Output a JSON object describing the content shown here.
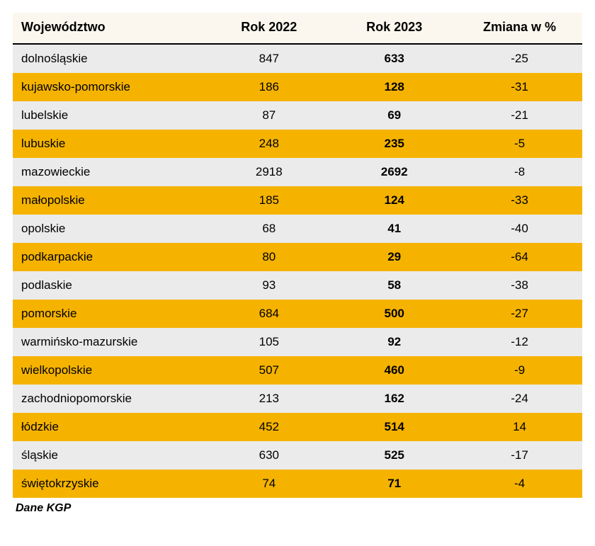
{
  "table": {
    "type": "table",
    "columns": [
      {
        "key": "wojewodztwo",
        "label": "Województwo",
        "align": "left",
        "bold": false,
        "width_pct": 34
      },
      {
        "key": "rok2022",
        "label": "Rok 2022",
        "align": "center",
        "bold": false,
        "width_pct": 22
      },
      {
        "key": "rok2023",
        "label": "Rok 2023",
        "align": "center",
        "bold": true,
        "width_pct": 22
      },
      {
        "key": "zmiana",
        "label": "Zmiana w %",
        "align": "center",
        "bold": false,
        "width_pct": 22
      }
    ],
    "rows": [
      [
        "dolnośląskie",
        "847",
        "633",
        "-25"
      ],
      [
        "kujawsko-pomorskie",
        "186",
        "128",
        "-31"
      ],
      [
        "lubelskie",
        "87",
        "69",
        "-21"
      ],
      [
        "lubuskie",
        "248",
        "235",
        "-5"
      ],
      [
        "mazowieckie",
        "2918",
        "2692",
        "-8"
      ],
      [
        "małopolskie",
        "185",
        "124",
        "-33"
      ],
      [
        "opolskie",
        "68",
        "41",
        "-40"
      ],
      [
        "podkarpackie",
        "80",
        "29",
        "-64"
      ],
      [
        "podlaskie",
        "93",
        "58",
        "-38"
      ],
      [
        "pomorskie",
        "684",
        "500",
        "-27"
      ],
      [
        "warmińsko-mazurskie",
        "105",
        "92",
        "-12"
      ],
      [
        "wielkopolskie",
        "507",
        "460",
        "-9"
      ],
      [
        "zachodniopomorskie",
        "213",
        "162",
        "-24"
      ],
      [
        "łódzkie",
        "452",
        "514",
        "14"
      ],
      [
        "śląskie",
        "630",
        "525",
        "-17"
      ],
      [
        "świętokrzyskie",
        "74",
        "71",
        "-4"
      ]
    ],
    "header_background": "#fbf7ee",
    "row_even_background": "#ebebeb",
    "row_odd_background": "#f5b300",
    "header_border_color": "#000000",
    "header_fontsize": 18,
    "cell_fontsize": 17,
    "font_family": "Verdana"
  },
  "caption": "Dane KGP"
}
